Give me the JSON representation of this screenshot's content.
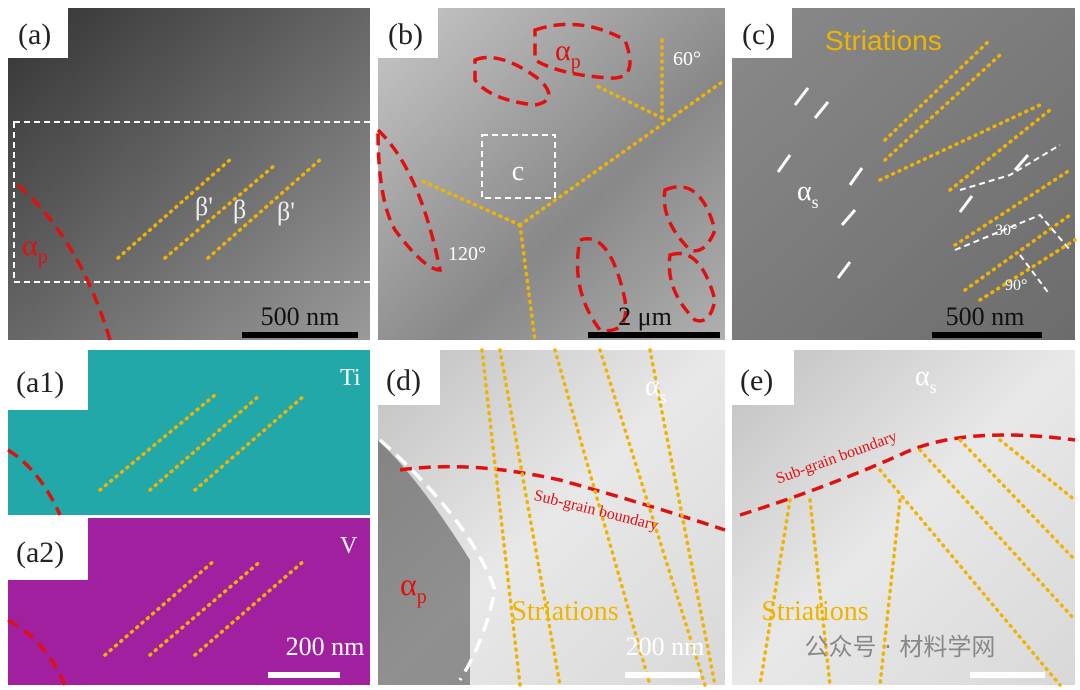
{
  "panels": {
    "a": {
      "label": "(a)",
      "phase": {
        "symbol": "α",
        "sub": "p"
      },
      "beta_left": "β'",
      "beta_mid": "β",
      "beta_right": "β'",
      "scale": "500 nm"
    },
    "b": {
      "label": "(b)",
      "phase": {
        "symbol": "α",
        "sub": "p"
      },
      "angle_top": "60°",
      "box": "c",
      "angle_left": "120°",
      "scale": "2 μm"
    },
    "c": {
      "label": "(c)",
      "striations": "Striations",
      "phase": {
        "symbol": "α",
        "sub": "s"
      },
      "angle_a": "30°",
      "angle_b": "90°",
      "scale": "500 nm"
    },
    "a1": {
      "label": "(a1)",
      "element": "Ti"
    },
    "a2": {
      "label": "(a2)",
      "element": "V",
      "scale": "200 nm"
    },
    "d": {
      "label": "(d)",
      "phase_s": {
        "symbol": "α",
        "sub": "s"
      },
      "boundary": "Sub-grain boundary",
      "phase_p": {
        "symbol": "α",
        "sub": "p"
      },
      "striations": "Striations",
      "scale": "200 nm"
    },
    "e": {
      "label": "(e)",
      "phase_s": {
        "symbol": "α",
        "sub": "s"
      },
      "boundary": "Sub-grain boundary",
      "striations": "Striations"
    }
  },
  "watermark": "公众号 · 材料学网"
}
